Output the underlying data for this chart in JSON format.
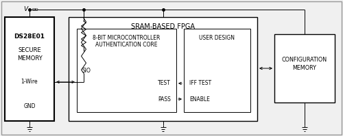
{
  "bg_color": "#f0f0f0",
  "line_color": "#000000",
  "box_fill": "#ffffff",
  "fpga_title": "SRAM-BASED FPGA",
  "ds_label1": "DS28E01",
  "ds_label2": "SECURE",
  "ds_label3": "MEMORY",
  "ds_label4": "1-Wire",
  "auth_label1": "8-BIT MICROCONTROLLER",
  "auth_label2": "AUTHENTICATION CORE",
  "auth_sio": "SIO",
  "auth_test": "TEST",
  "auth_pass": "PASS",
  "user_label1": "USER DESIGN",
  "user_iff": "IFF TEST",
  "user_enable": "ENABLE",
  "conf_label1": "CONFIGURATION",
  "conf_label2": "MEMORY",
  "gnd_label": "GND"
}
